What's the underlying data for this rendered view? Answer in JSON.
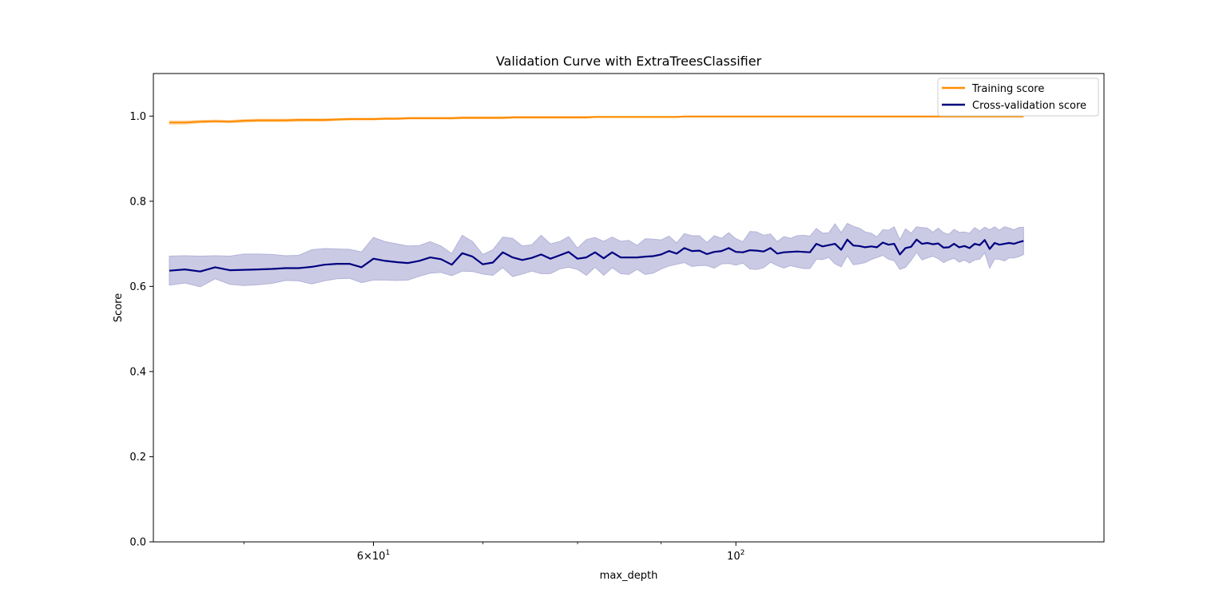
{
  "chart_data": {
    "type": "line",
    "title": "Validation Curve with ExtraTreesClassifier",
    "xlabel": "max_depth",
    "ylabel": "Score",
    "xscale": "log",
    "xlim": [
      44,
      168
    ],
    "ylim": [
      0.0,
      1.1
    ],
    "grid": false,
    "legend_position": "top-right",
    "x_major_ticks": [
      {
        "value": 60,
        "label_base": "6",
        "label_mult": "×",
        "label_pow_base": "10",
        "label_exp": "1"
      },
      {
        "value": 100,
        "label_base": "",
        "label_mult": "",
        "label_pow_base": "10",
        "label_exp": "2"
      }
    ],
    "x_minor_ticks": [
      50,
      70,
      80,
      90
    ],
    "y_ticks": [
      {
        "value": 0.0,
        "label": "0.0"
      },
      {
        "value": 0.2,
        "label": "0.2"
      },
      {
        "value": 0.4,
        "label": "0.4"
      },
      {
        "value": 0.6,
        "label": "0.6"
      },
      {
        "value": 0.8,
        "label": "0.8"
      },
      {
        "value": 1.0,
        "label": "1.0"
      }
    ],
    "x": [
      45,
      46,
      47,
      48,
      49,
      50,
      51,
      52,
      53,
      54,
      55,
      56,
      57,
      58,
      59,
      60,
      61,
      62,
      63,
      64,
      65,
      66,
      67,
      68,
      69,
      70,
      71,
      72,
      73,
      74,
      75,
      76,
      77,
      78,
      79,
      80,
      81,
      82,
      83,
      84,
      85,
      86,
      87,
      88,
      89,
      90,
      91,
      92,
      93,
      94,
      95,
      96,
      97,
      98,
      99,
      100,
      101,
      102,
      103,
      104,
      105,
      106,
      107,
      108,
      109,
      110,
      111,
      112,
      113,
      114,
      115,
      116,
      117,
      118,
      119,
      120,
      121,
      122,
      123,
      124,
      125,
      126,
      127,
      128,
      129,
      130,
      131,
      132,
      133,
      134,
      135,
      136,
      137,
      138,
      139,
      140,
      141,
      142,
      143,
      144,
      145,
      146,
      147,
      148,
      149,
      150
    ],
    "series": [
      {
        "name": "Training score",
        "color": "#ff8c00",
        "band_color": "#ffd8a8",
        "values": [
          0.985,
          0.985,
          0.987,
          0.988,
          0.987,
          0.989,
          0.99,
          0.99,
          0.99,
          0.991,
          0.991,
          0.991,
          0.992,
          0.993,
          0.993,
          0.993,
          0.994,
          0.994,
          0.995,
          0.995,
          0.995,
          0.995,
          0.995,
          0.996,
          0.996,
          0.996,
          0.996,
          0.996,
          0.997,
          0.997,
          0.997,
          0.997,
          0.997,
          0.997,
          0.997,
          0.997,
          0.997,
          0.998,
          0.998,
          0.998,
          0.998,
          0.998,
          0.998,
          0.998,
          0.998,
          0.998,
          0.998,
          0.998,
          0.999,
          0.999,
          0.999,
          0.999,
          0.999,
          0.999,
          0.999,
          0.999,
          0.999,
          0.999,
          0.999,
          0.999,
          0.999,
          0.999,
          0.999,
          0.999,
          0.999,
          0.999,
          0.999,
          0.999,
          0.999,
          0.999,
          0.999,
          0.999,
          0.999,
          0.999,
          0.999,
          0.999,
          0.999,
          0.999,
          0.999,
          0.999,
          0.999,
          0.999,
          0.999,
          0.999,
          0.999,
          0.999,
          0.999,
          0.999,
          0.999,
          0.999,
          0.999,
          0.999,
          0.999,
          0.999,
          0.999,
          0.999,
          0.999,
          0.999,
          0.999,
          0.999,
          0.999,
          0.999,
          0.999,
          0.999,
          0.999,
          0.999
        ],
        "std": [
          0.004,
          0.004,
          0.003,
          0.003,
          0.003,
          0.003,
          0.003,
          0.003,
          0.003,
          0.003,
          0.003,
          0.003,
          0.002,
          0.002,
          0.002,
          0.002,
          0.002,
          0.002,
          0.002,
          0.002,
          0.002,
          0.002,
          0.002,
          0.002,
          0.002,
          0.002,
          0.002,
          0.002,
          0.002,
          0.002,
          0.002,
          0.002,
          0.002,
          0.002,
          0.002,
          0.002,
          0.002,
          0.001,
          0.001,
          0.001,
          0.001,
          0.001,
          0.001,
          0.001,
          0.001,
          0.001,
          0.001,
          0.001,
          0.001,
          0.001,
          0.001,
          0.001,
          0.001,
          0.001,
          0.001,
          0.001,
          0.001,
          0.001,
          0.001,
          0.001,
          0.001,
          0.001,
          0.001,
          0.001,
          0.001,
          0.001,
          0.001,
          0.001,
          0.001,
          0.001,
          0.001,
          0.001,
          0.001,
          0.001,
          0.001,
          0.001,
          0.001,
          0.001,
          0.001,
          0.001,
          0.001,
          0.001,
          0.001,
          0.001,
          0.001,
          0.001,
          0.001,
          0.001,
          0.001,
          0.001,
          0.001,
          0.001,
          0.001,
          0.001,
          0.001,
          0.001,
          0.001,
          0.001,
          0.001,
          0.001,
          0.001,
          0.001,
          0.001,
          0.001,
          0.001,
          0.001
        ]
      },
      {
        "name": "Cross-validation score",
        "color": "#000080",
        "band_color": "#b3b3d9",
        "values": [
          0.637,
          0.64,
          0.635,
          0.645,
          0.638,
          0.639,
          0.64,
          0.641,
          0.643,
          0.643,
          0.646,
          0.651,
          0.653,
          0.653,
          0.645,
          0.665,
          0.66,
          0.657,
          0.655,
          0.66,
          0.668,
          0.664,
          0.651,
          0.678,
          0.67,
          0.652,
          0.656,
          0.68,
          0.668,
          0.662,
          0.667,
          0.675,
          0.665,
          0.673,
          0.681,
          0.665,
          0.668,
          0.68,
          0.666,
          0.68,
          0.668,
          0.668,
          0.668,
          0.67,
          0.671,
          0.675,
          0.683,
          0.677,
          0.69,
          0.683,
          0.684,
          0.676,
          0.681,
          0.683,
          0.69,
          0.681,
          0.68,
          0.685,
          0.684,
          0.682,
          0.69,
          0.677,
          0.68,
          0.681,
          0.682,
          0.681,
          0.68,
          0.7,
          0.694,
          0.697,
          0.7,
          0.686,
          0.71,
          0.696,
          0.695,
          0.692,
          0.694,
          0.692,
          0.703,
          0.698,
          0.7,
          0.675,
          0.69,
          0.693,
          0.71,
          0.7,
          0.702,
          0.699,
          0.701,
          0.691,
          0.692,
          0.7,
          0.692,
          0.695,
          0.69,
          0.7,
          0.697,
          0.709,
          0.688,
          0.702,
          0.698,
          0.7,
          0.702,
          0.7,
          0.704,
          0.707
        ],
        "std": [
          0.034,
          0.032,
          0.036,
          0.027,
          0.033,
          0.037,
          0.036,
          0.034,
          0.029,
          0.03,
          0.04,
          0.038,
          0.035,
          0.034,
          0.036,
          0.05,
          0.045,
          0.043,
          0.04,
          0.036,
          0.037,
          0.031,
          0.026,
          0.042,
          0.035,
          0.023,
          0.03,
          0.036,
          0.045,
          0.033,
          0.031,
          0.045,
          0.035,
          0.032,
          0.036,
          0.025,
          0.042,
          0.035,
          0.04,
          0.036,
          0.038,
          0.04,
          0.028,
          0.042,
          0.04,
          0.034,
          0.035,
          0.025,
          0.034,
          0.036,
          0.035,
          0.027,
          0.038,
          0.03,
          0.036,
          0.031,
          0.025,
          0.044,
          0.044,
          0.038,
          0.033,
          0.028,
          0.037,
          0.032,
          0.037,
          0.039,
          0.038,
          0.036,
          0.031,
          0.029,
          0.047,
          0.04,
          0.038,
          0.045,
          0.042,
          0.036,
          0.031,
          0.024,
          0.03,
          0.034,
          0.04,
          0.035,
          0.045,
          0.032,
          0.03,
          0.038,
          0.035,
          0.028,
          0.036,
          0.035,
          0.03,
          0.034,
          0.035,
          0.033,
          0.035,
          0.038,
          0.033,
          0.03,
          0.045,
          0.038,
          0.034,
          0.04,
          0.035,
          0.033,
          0.034,
          0.032
        ]
      }
    ]
  }
}
